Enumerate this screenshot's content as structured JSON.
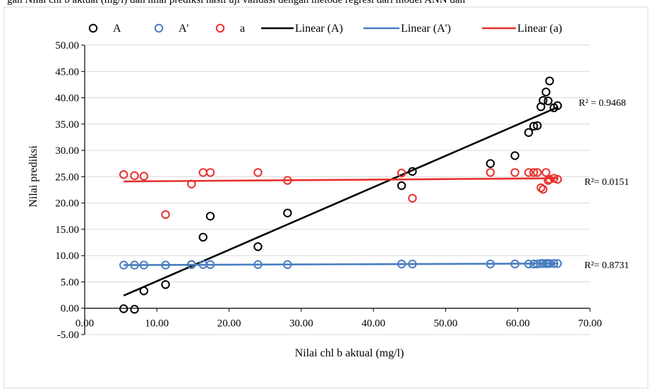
{
  "header_text": "gan Nilai chl b aktual (mg/l) dan nilai prediksi hasil uji validasi dengan metode regresi dari model ANN dan",
  "chart_data": {
    "type": "scatter",
    "title": "",
    "xlabel": "Nilai chl b aktual (mg/l)",
    "ylabel": "Nilai prediksi",
    "xlim": [
      0,
      70
    ],
    "ylim": [
      -5,
      50
    ],
    "x_ticks": [
      "0.00",
      "10.00",
      "20.00",
      "30.00",
      "40.00",
      "50.00",
      "60.00",
      "70.00"
    ],
    "y_ticks": [
      "-5.00",
      "0.00",
      "5.00",
      "10.00",
      "15.00",
      "20.00",
      "25.00",
      "30.00",
      "35.00",
      "40.00",
      "45.00",
      "50.00"
    ],
    "grid": "horizontal",
    "legend_position": "top",
    "legend": [
      "A",
      "A'",
      "a",
      "Linear (A)",
      "Linear (A')",
      "Linear (a)"
    ],
    "series": [
      {
        "name": "A",
        "color": "#000000",
        "marker": "circle-open",
        "points": [
          [
            5.4,
            -0.1
          ],
          [
            6.9,
            -0.2
          ],
          [
            8.2,
            3.3
          ],
          [
            11.2,
            4.5
          ],
          [
            14.8,
            8.3
          ],
          [
            16.4,
            13.5
          ],
          [
            17.4,
            17.5
          ],
          [
            24.0,
            11.7
          ],
          [
            28.1,
            18.1
          ],
          [
            43.9,
            23.3
          ],
          [
            45.4,
            26.0
          ],
          [
            56.2,
            27.5
          ],
          [
            59.6,
            29.0
          ],
          [
            61.5,
            33.4
          ],
          [
            62.2,
            34.6
          ],
          [
            62.7,
            34.7
          ],
          [
            63.2,
            38.3
          ],
          [
            63.5,
            39.5
          ],
          [
            63.9,
            41.1
          ],
          [
            64.2,
            39.4
          ],
          [
            64.4,
            43.2
          ],
          [
            65.0,
            38.1
          ],
          [
            65.5,
            38.5
          ]
        ],
        "trendline": {
          "label": "Linear (A)",
          "from": [
            5.4,
            2.4
          ],
          "to": [
            65.5,
            38.2
          ],
          "r2": "R² = 0.9468"
        }
      },
      {
        "name": "A'",
        "color": "#4a7dbf",
        "marker": "circle-open",
        "points": [
          [
            5.4,
            8.2
          ],
          [
            6.9,
            8.2
          ],
          [
            8.2,
            8.2
          ],
          [
            11.2,
            8.2
          ],
          [
            14.8,
            8.3
          ],
          [
            16.4,
            8.3
          ],
          [
            17.4,
            8.3
          ],
          [
            24.0,
            8.3
          ],
          [
            28.1,
            8.3
          ],
          [
            43.9,
            8.4
          ],
          [
            45.4,
            8.4
          ],
          [
            56.2,
            8.4
          ],
          [
            59.6,
            8.4
          ],
          [
            61.5,
            8.4
          ],
          [
            62.2,
            8.4
          ],
          [
            62.7,
            8.4
          ],
          [
            63.2,
            8.5
          ],
          [
            63.5,
            8.5
          ],
          [
            63.9,
            8.5
          ],
          [
            64.2,
            8.5
          ],
          [
            64.4,
            8.5
          ],
          [
            65.0,
            8.5
          ],
          [
            65.5,
            8.5
          ]
        ],
        "trendline": {
          "label": "Linear (A')",
          "from": [
            5.4,
            8.2
          ],
          "to": [
            65.5,
            8.5
          ],
          "r2": "R²= 0.8731"
        }
      },
      {
        "name": "a",
        "color": "#e8302c",
        "marker": "circle-open",
        "points": [
          [
            5.4,
            25.4
          ],
          [
            6.9,
            25.2
          ],
          [
            8.2,
            25.1
          ],
          [
            11.2,
            17.8
          ],
          [
            14.8,
            23.6
          ],
          [
            16.4,
            25.8
          ],
          [
            17.4,
            25.8
          ],
          [
            24.0,
            25.8
          ],
          [
            28.1,
            24.3
          ],
          [
            43.9,
            25.7
          ],
          [
            45.4,
            20.9
          ],
          [
            56.2,
            25.8
          ],
          [
            59.6,
            25.8
          ],
          [
            61.5,
            25.8
          ],
          [
            62.2,
            25.8
          ],
          [
            62.7,
            25.8
          ],
          [
            63.2,
            22.9
          ],
          [
            63.5,
            22.6
          ],
          [
            63.9,
            25.8
          ],
          [
            64.2,
            24.3
          ],
          [
            64.4,
            24.5
          ],
          [
            65.0,
            24.7
          ],
          [
            65.5,
            24.5
          ]
        ],
        "trendline": {
          "label": "Linear (a)",
          "from": [
            5.4,
            24.1
          ],
          "to": [
            65.5,
            24.7
          ],
          "r2": "R²= 0.0151"
        }
      }
    ]
  }
}
